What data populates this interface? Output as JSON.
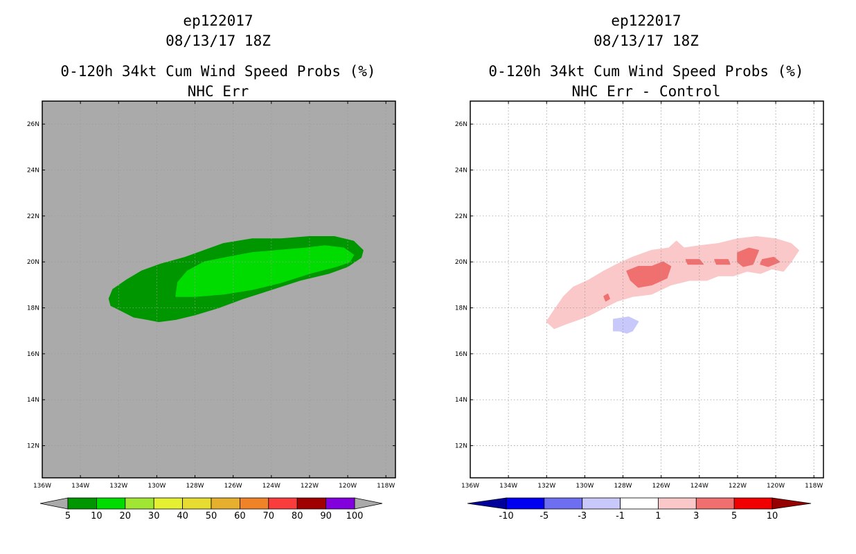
{
  "chart_data": [
    {
      "type": "contour-map",
      "storm_id": "ep122017",
      "datetime": "08/13/17 18Z",
      "title": "0-120h 34kt Cum Wind Speed Probs (%)",
      "subtitle": "NHC Err",
      "x_ticks": [
        "136W",
        "134W",
        "132W",
        "130W",
        "128W",
        "126W",
        "124W",
        "122W",
        "120W",
        "118W"
      ],
      "y_ticks": [
        "12N",
        "14N",
        "16N",
        "18N",
        "20N",
        "22N",
        "24N",
        "26N"
      ],
      "xlim": [
        -136,
        -117.5
      ],
      "ylim": [
        10.6,
        27
      ],
      "background_color": "#aaaaaa",
      "grid": true,
      "colorbar": {
        "colors": [
          "#009600",
          "#00dc00",
          "#a0e632",
          "#e6f032",
          "#e6dc32",
          "#e6af2d",
          "#f08228",
          "#fa3c3c",
          "#a00000",
          "#8200dc"
        ],
        "labels": [
          "5",
          "10",
          "20",
          "30",
          "40",
          "50",
          "60",
          "70",
          "80",
          "90",
          "100"
        ]
      },
      "contours": [
        {
          "level": "5-10",
          "color": "#009600",
          "polygon": [
            [
              -132.5,
              18.4
            ],
            [
              -132.3,
              18.8
            ],
            [
              -131.6,
              19.2
            ],
            [
              -130.8,
              19.6
            ],
            [
              -129.8,
              19.9
            ],
            [
              -128.5,
              20.2
            ],
            [
              -127.5,
              20.5
            ],
            [
              -126.5,
              20.8
            ],
            [
              -125.0,
              21.0
            ],
            [
              -123.5,
              21.0
            ],
            [
              -122.0,
              21.1
            ],
            [
              -120.7,
              21.1
            ],
            [
              -119.7,
              20.9
            ],
            [
              -119.2,
              20.5
            ],
            [
              -119.3,
              20.2
            ],
            [
              -120.0,
              19.8
            ],
            [
              -121.0,
              19.5
            ],
            [
              -122.5,
              19.2
            ],
            [
              -124.0,
              18.8
            ],
            [
              -125.5,
              18.4
            ],
            [
              -126.8,
              18.0
            ],
            [
              -128.0,
              17.7
            ],
            [
              -129.0,
              17.5
            ],
            [
              -129.9,
              17.4
            ],
            [
              -130.5,
              17.5
            ],
            [
              -131.2,
              17.6
            ],
            [
              -131.9,
              17.9
            ],
            [
              -132.4,
              18.1
            ]
          ]
        },
        {
          "level": "10-20",
          "color": "#00dc00",
          "polygon": [
            [
              -129.0,
              18.5
            ],
            [
              -128.9,
              19.1
            ],
            [
              -128.4,
              19.6
            ],
            [
              -127.5,
              20.0
            ],
            [
              -126.3,
              20.2
            ],
            [
              -125.0,
              20.4
            ],
            [
              -123.6,
              20.5
            ],
            [
              -122.2,
              20.6
            ],
            [
              -121.2,
              20.7
            ],
            [
              -120.2,
              20.6
            ],
            [
              -119.7,
              20.3
            ],
            [
              -119.9,
              20.0
            ],
            [
              -120.6,
              19.8
            ],
            [
              -122.0,
              19.5
            ],
            [
              -123.5,
              19.1
            ],
            [
              -125.0,
              18.8
            ],
            [
              -126.5,
              18.6
            ],
            [
              -128.0,
              18.5
            ]
          ]
        }
      ]
    },
    {
      "type": "contour-map",
      "storm_id": "ep122017",
      "datetime": "08/13/17 18Z",
      "title": "0-120h 34kt Cum Wind Speed Probs (%)",
      "subtitle": "NHC Err - Control",
      "x_ticks": [
        "136W",
        "134W",
        "132W",
        "130W",
        "128W",
        "126W",
        "124W",
        "122W",
        "120W",
        "118W"
      ],
      "y_ticks": [
        "12N",
        "14N",
        "16N",
        "18N",
        "20N",
        "22N",
        "24N",
        "26N"
      ],
      "xlim": [
        -136,
        -117.5
      ],
      "ylim": [
        10.6,
        27
      ],
      "background_color": "#ffffff",
      "grid": true,
      "colorbar": {
        "colors": [
          "#00009b",
          "#0000f0",
          "#6e6ef0",
          "#c8c8fa",
          "#ffffff",
          "#fac8c8",
          "#f07070",
          "#f00000",
          "#960000"
        ],
        "labels": [
          "-10",
          "-5",
          "-3",
          "-1",
          "1",
          "3",
          "5",
          "10"
        ]
      },
      "contours": [
        {
          "level": "1-3",
          "color": "#fac8c8",
          "polygon": [
            [
              -132.0,
              17.4
            ],
            [
              -131.6,
              17.9
            ],
            [
              -131.1,
              18.5
            ],
            [
              -130.6,
              18.9
            ],
            [
              -129.8,
              19.2
            ],
            [
              -129.0,
              19.6
            ],
            [
              -128.3,
              19.9
            ],
            [
              -127.5,
              20.2
            ],
            [
              -126.5,
              20.5
            ],
            [
              -125.6,
              20.6
            ],
            [
              -125.2,
              20.9
            ],
            [
              -124.8,
              20.6
            ],
            [
              -124.0,
              20.7
            ],
            [
              -123.0,
              20.8
            ],
            [
              -122.0,
              21.0
            ],
            [
              -121.0,
              21.1
            ],
            [
              -120.0,
              21.0
            ],
            [
              -119.2,
              20.8
            ],
            [
              -118.8,
              20.5
            ],
            [
              -119.2,
              20.0
            ],
            [
              -119.6,
              19.6
            ],
            [
              -120.2,
              19.7
            ],
            [
              -120.8,
              19.5
            ],
            [
              -121.5,
              19.6
            ],
            [
              -122.2,
              19.4
            ],
            [
              -123.0,
              19.4
            ],
            [
              -123.6,
              19.2
            ],
            [
              -124.5,
              19.2
            ],
            [
              -125.5,
              19.0
            ],
            [
              -126.5,
              18.6
            ],
            [
              -127.5,
              18.5
            ],
            [
              -128.3,
              18.3
            ],
            [
              -129.0,
              18.0
            ],
            [
              -129.7,
              17.7
            ],
            [
              -130.3,
              17.5
            ],
            [
              -131.0,
              17.3
            ],
            [
              -131.6,
              17.1
            ]
          ]
        },
        {
          "level": "3-5",
          "color": "#f07070",
          "polygon": [
            [
              -127.8,
              19.6
            ],
            [
              -127.2,
              19.8
            ],
            [
              -126.5,
              19.8
            ],
            [
              -125.9,
              20.0
            ],
            [
              -125.5,
              19.8
            ],
            [
              -125.7,
              19.3
            ],
            [
              -126.5,
              19.0
            ],
            [
              -127.2,
              18.9
            ],
            [
              -127.6,
              19.2
            ]
          ]
        },
        {
          "level": "3-5",
          "color": "#f07070",
          "polygon": [
            [
              -124.7,
              20.1
            ],
            [
              -124.0,
              20.1
            ],
            [
              -123.8,
              19.9
            ],
            [
              -124.6,
              19.9
            ]
          ]
        },
        {
          "level": "3-5",
          "color": "#f07070",
          "polygon": [
            [
              -123.2,
              20.1
            ],
            [
              -122.5,
              20.1
            ],
            [
              -122.4,
              19.9
            ],
            [
              -123.1,
              19.9
            ]
          ]
        },
        {
          "level": "3-5",
          "color": "#f07070",
          "polygon": [
            [
              -122.0,
              20.4
            ],
            [
              -121.4,
              20.6
            ],
            [
              -120.9,
              20.5
            ],
            [
              -121.2,
              19.9
            ],
            [
              -121.7,
              19.8
            ],
            [
              -122.0,
              20.0
            ]
          ]
        },
        {
          "level": "3-5",
          "color": "#f07070",
          "polygon": [
            [
              -120.7,
              20.1
            ],
            [
              -120.1,
              20.2
            ],
            [
              -119.8,
              20.0
            ],
            [
              -120.4,
              19.8
            ],
            [
              -120.8,
              19.9
            ]
          ]
        },
        {
          "level": "3-5",
          "color": "#f07070",
          "polygon": [
            [
              -129.0,
              18.5
            ],
            [
              -128.8,
              18.6
            ],
            [
              -128.7,
              18.4
            ],
            [
              -128.9,
              18.3
            ]
          ]
        },
        {
          "level": "-3 to -1",
          "color": "#c8c8fa",
          "polygon": [
            [
              -128.5,
              17.5
            ],
            [
              -127.7,
              17.6
            ],
            [
              -127.2,
              17.4
            ],
            [
              -127.5,
              17.0
            ],
            [
              -127.8,
              16.9
            ],
            [
              -128.2,
              17.0
            ],
            [
              -128.5,
              17.0
            ]
          ]
        }
      ]
    }
  ]
}
